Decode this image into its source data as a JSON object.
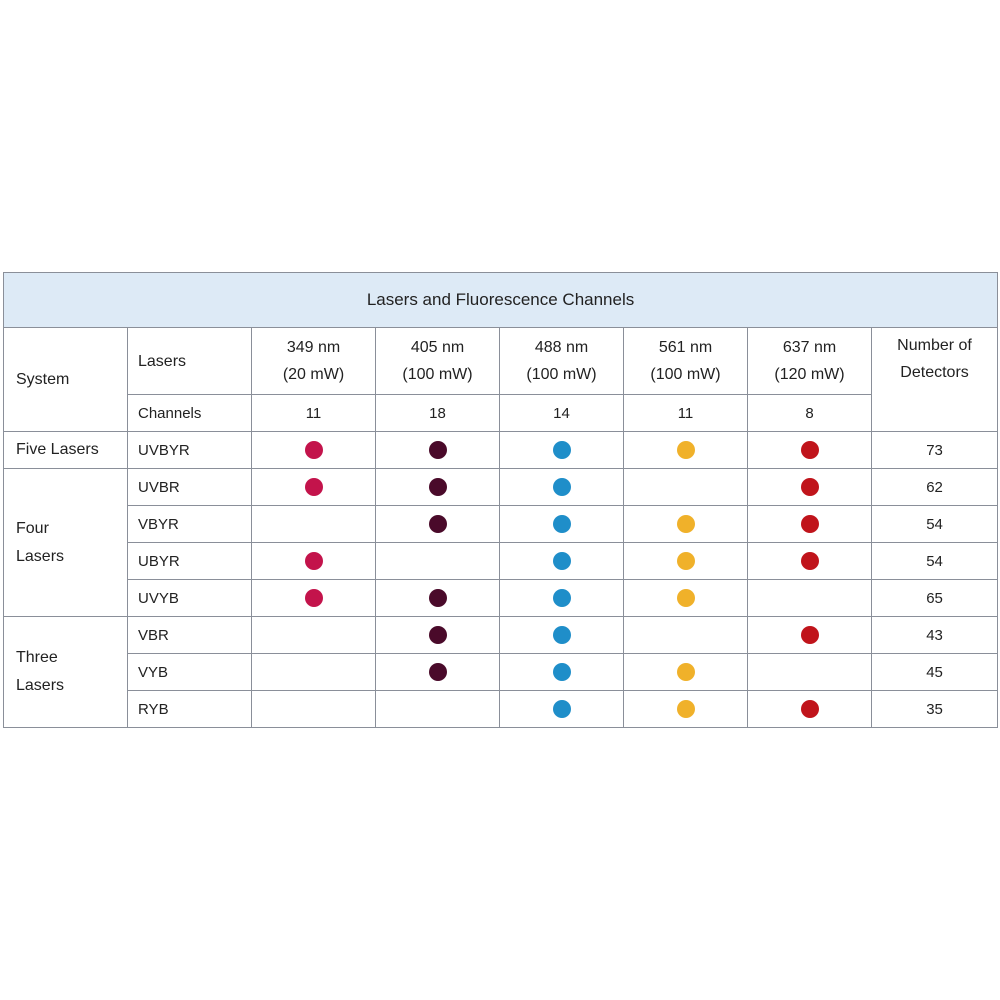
{
  "table": {
    "title": "Lasers and Fluorescence Channels",
    "system_label": "System",
    "lasers_label": "Lasers",
    "channels_label": "Channels",
    "detectors_header": [
      "Number of",
      "Detectors"
    ],
    "laser_columns": [
      {
        "wavelength": "349 nm",
        "power": "(20 mW)",
        "channels": "11",
        "color": "#c3134b"
      },
      {
        "wavelength": "405 nm",
        "power": "(100 mW)",
        "channels": "18",
        "color": "#4a0a2a"
      },
      {
        "wavelength": "488 nm",
        "power": "(100 mW)",
        "channels": "14",
        "color": "#1f8ec9"
      },
      {
        "wavelength": "561 nm",
        "power": "(100 mW)",
        "channels": "11",
        "color": "#f0b12a"
      },
      {
        "wavelength": "637 nm",
        "power": "(120 mW)",
        "channels": "8",
        "color": "#c0141b"
      }
    ],
    "groups": [
      {
        "label": [
          "Five Lasers"
        ],
        "rows": [
          {
            "code": "UVBYR",
            "lasers": [
              true,
              true,
              true,
              true,
              true
            ],
            "detectors": "73"
          }
        ]
      },
      {
        "label": [
          "Four",
          "Lasers"
        ],
        "rows": [
          {
            "code": "UVBR",
            "lasers": [
              true,
              true,
              true,
              false,
              true
            ],
            "detectors": "62"
          },
          {
            "code": "VBYR",
            "lasers": [
              false,
              true,
              true,
              true,
              true
            ],
            "detectors": "54"
          },
          {
            "code": "UBYR",
            "lasers": [
              true,
              false,
              true,
              true,
              true
            ],
            "detectors": "54"
          },
          {
            "code": "UVYB",
            "lasers": [
              true,
              true,
              true,
              true,
              false
            ],
            "detectors": "65"
          }
        ]
      },
      {
        "label": [
          "Three",
          "Lasers"
        ],
        "rows": [
          {
            "code": "VBR",
            "lasers": [
              false,
              true,
              true,
              false,
              true
            ],
            "detectors": "43"
          },
          {
            "code": "VYB",
            "lasers": [
              false,
              true,
              true,
              true,
              false
            ],
            "detectors": "45"
          },
          {
            "code": "RYB",
            "lasers": [
              false,
              false,
              true,
              true,
              true
            ],
            "detectors": "35"
          }
        ]
      }
    ]
  }
}
